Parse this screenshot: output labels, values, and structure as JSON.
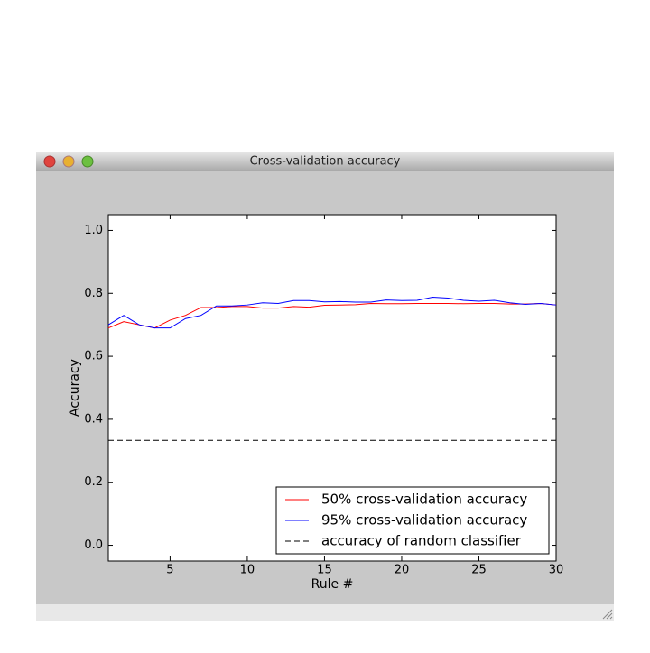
{
  "window": {
    "title": "Cross-validation accuracy"
  },
  "chart_data": {
    "type": "line",
    "x": [
      1,
      2,
      3,
      4,
      5,
      6,
      7,
      8,
      9,
      10,
      11,
      12,
      13,
      14,
      15,
      16,
      17,
      18,
      19,
      20,
      21,
      22,
      23,
      24,
      25,
      26,
      27,
      28,
      29,
      30
    ],
    "series": [
      {
        "name": "50% cross-validation accuracy",
        "color": "#ff0000",
        "values": [
          0.69,
          0.71,
          0.7,
          0.69,
          0.715,
          0.73,
          0.755,
          0.755,
          0.758,
          0.758,
          0.753,
          0.753,
          0.758,
          0.756,
          0.762,
          0.763,
          0.764,
          0.768,
          0.767,
          0.767,
          0.768,
          0.768,
          0.768,
          0.767,
          0.768,
          0.768,
          0.766,
          0.766,
          0.768,
          0.763
        ]
      },
      {
        "name": "95% cross-validation accuracy",
        "color": "#0000ff",
        "values": [
          0.7,
          0.73,
          0.7,
          0.69,
          0.69,
          0.72,
          0.73,
          0.76,
          0.76,
          0.763,
          0.77,
          0.768,
          0.777,
          0.777,
          0.773,
          0.774,
          0.772,
          0.772,
          0.779,
          0.777,
          0.778,
          0.788,
          0.785,
          0.778,
          0.775,
          0.778,
          0.77,
          0.765,
          0.768,
          0.763
        ]
      }
    ],
    "reference_line": {
      "name": "accuracy of random classifier",
      "value": 0.333,
      "color": "#000000",
      "style": "dashed"
    },
    "xlabel": "Rule #",
    "ylabel": "Accuracy",
    "xlim": [
      1,
      30
    ],
    "xticks": [
      5,
      10,
      15,
      20,
      25,
      30
    ],
    "ylim": [
      -0.05,
      1.05
    ],
    "yticks": [
      {
        "value": 0,
        "label": "0.0"
      },
      {
        "value": 0.2,
        "label": "0.2"
      },
      {
        "value": 0.4,
        "label": "0.4"
      },
      {
        "value": 0.6,
        "label": "0.6"
      },
      {
        "value": 0.8,
        "label": "0.8"
      },
      {
        "value": 1.0,
        "label": "1.0"
      }
    ],
    "legend": "lower right"
  }
}
